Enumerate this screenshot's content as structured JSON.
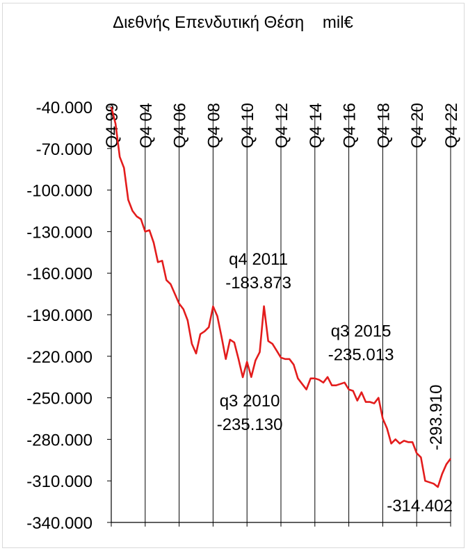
{
  "chart_data": {
    "type": "line",
    "title": "Διεθνής Επενδυτική Θέση    mil€",
    "x_ticks": [
      "Q4 99",
      "Q4 04",
      "Q4 06",
      "Q4 08",
      "Q4 10",
      "Q4 12",
      "Q4 14",
      "Q4 16",
      "Q4 18",
      "Q4 20",
      "Q4 22"
    ],
    "ylim": [
      -340000,
      -40000
    ],
    "y_ticks": [
      -40000,
      -70000,
      -100000,
      -130000,
      -160000,
      -190000,
      -220000,
      -250000,
      -280000,
      -310000,
      -340000
    ],
    "y_tick_labels": [
      "-40.000",
      "-70.000",
      "-100.000",
      "-130.000",
      "-160.000",
      "-190.000",
      "-220.000",
      "-250.000",
      "-280.000",
      "-310.000",
      "-340.000"
    ],
    "grid": "vertical",
    "line_color": "#e31c1c",
    "series": [
      {
        "points": [
          [
            "Q4 99",
            -40000
          ],
          [
            "Q1 00",
            -52000
          ],
          [
            "Q2 00",
            -76000
          ],
          [
            "Q3 00",
            -84000
          ],
          [
            "Q4 00",
            -107000
          ],
          [
            "Q1 01",
            -115000
          ],
          [
            "Q2 01",
            -119000
          ],
          [
            "Q3 01",
            -121000
          ],
          [
            "Q4 01",
            -130000
          ],
          [
            "Q1 02",
            -129000
          ],
          [
            "Q2 02",
            -138000
          ],
          [
            "Q3 02",
            -152000
          ],
          [
            "Q4 02",
            -151000
          ],
          [
            "Q1 03",
            -165000
          ],
          [
            "Q2 03",
            -168000
          ],
          [
            "Q3 03",
            -175000
          ],
          [
            "Q4 03",
            -182000
          ],
          [
            "Q1 04",
            -186000
          ],
          [
            "Q2 04",
            -194000
          ],
          [
            "Q3 04",
            -211000
          ],
          [
            "Q4 04",
            -218000
          ],
          [
            "Q1 05",
            -204000
          ],
          [
            "Q2 05",
            -202000
          ],
          [
            "Q3 05",
            -199000
          ],
          [
            "Q4 05",
            -184000
          ],
          [
            "Q1 06",
            -191000
          ],
          [
            "Q2 06",
            -206000
          ],
          [
            "Q3 06",
            -222000
          ],
          [
            "Q4 06",
            -208000
          ],
          [
            "Q1 07",
            -210000
          ],
          [
            "Q2 07",
            -222000
          ],
          [
            "Q3 07",
            -235130
          ],
          [
            "Q4 07",
            -224000
          ],
          [
            "Q1 08",
            -235000
          ],
          [
            "Q2 08",
            -223000
          ],
          [
            "Q3 08",
            -217000
          ],
          [
            "Q4 08",
            -183873
          ],
          [
            "Q1 09",
            -209000
          ],
          [
            "Q2 09",
            -211000
          ],
          [
            "Q3 09",
            -216000
          ],
          [
            "Q4 09",
            -221000
          ],
          [
            "Q1 10",
            -222000
          ],
          [
            "Q2 10",
            -222000
          ],
          [
            "Q3 10",
            -226000
          ],
          [
            "Q4 10",
            -236000
          ],
          [
            "Q1 11",
            -240000
          ],
          [
            "Q2 11",
            -244000
          ],
          [
            "Q3 11",
            -236000
          ],
          [
            "Q4 11",
            -236000
          ],
          [
            "Q1 12",
            -237000
          ],
          [
            "Q2 12",
            -239000
          ],
          [
            "Q3 12",
            -235013
          ],
          [
            "Q4 12",
            -241000
          ],
          [
            "Q1 13",
            -241000
          ],
          [
            "Q2 13",
            -240000
          ],
          [
            "Q3 13",
            -239000
          ],
          [
            "Q4 13",
            -244000
          ],
          [
            "Q1 14",
            -245000
          ],
          [
            "Q2 14",
            -252000
          ],
          [
            "Q3 14",
            -246000
          ],
          [
            "Q4 14",
            -253000
          ],
          [
            "Q1 15",
            -253000
          ],
          [
            "Q2 15",
            -254000
          ],
          [
            "Q3 15",
            -250000
          ],
          [
            "Q4 15",
            -265000
          ],
          [
            "Q1 16",
            -272000
          ],
          [
            "Q2 16",
            -283000
          ],
          [
            "Q3 16",
            -280000
          ],
          [
            "Q4 16",
            -283000
          ],
          [
            "Q1 17",
            -281000
          ],
          [
            "Q2 17",
            -282000
          ],
          [
            "Q3 17",
            -282000
          ],
          [
            "Q4 17",
            -290000
          ],
          [
            "Q1 18",
            -293000
          ],
          [
            "Q2 18",
            -310000
          ],
          [
            "Q3 18",
            -311000
          ],
          [
            "Q4 18",
            -312000
          ],
          [
            "Q1 19",
            -314402
          ],
          [
            "Q2 19",
            -305000
          ],
          [
            "Q3 19",
            -298000
          ],
          [
            "Q4 19",
            -293910
          ]
        ]
      }
    ],
    "annotations": [
      {
        "text": [
          "q4 2011",
          "-183.873"
        ],
        "point_index": 36
      },
      {
        "text": [
          "q3 2010",
          "-235.130"
        ],
        "point_index": 31
      },
      {
        "text": [
          "q3 2015",
          "-235.013"
        ],
        "point_index": 51
      },
      {
        "text": [
          "-314.402"
        ],
        "point_index": 76
      },
      {
        "text": [
          "-293.910"
        ],
        "point_index": 79,
        "vertical": true
      }
    ]
  }
}
